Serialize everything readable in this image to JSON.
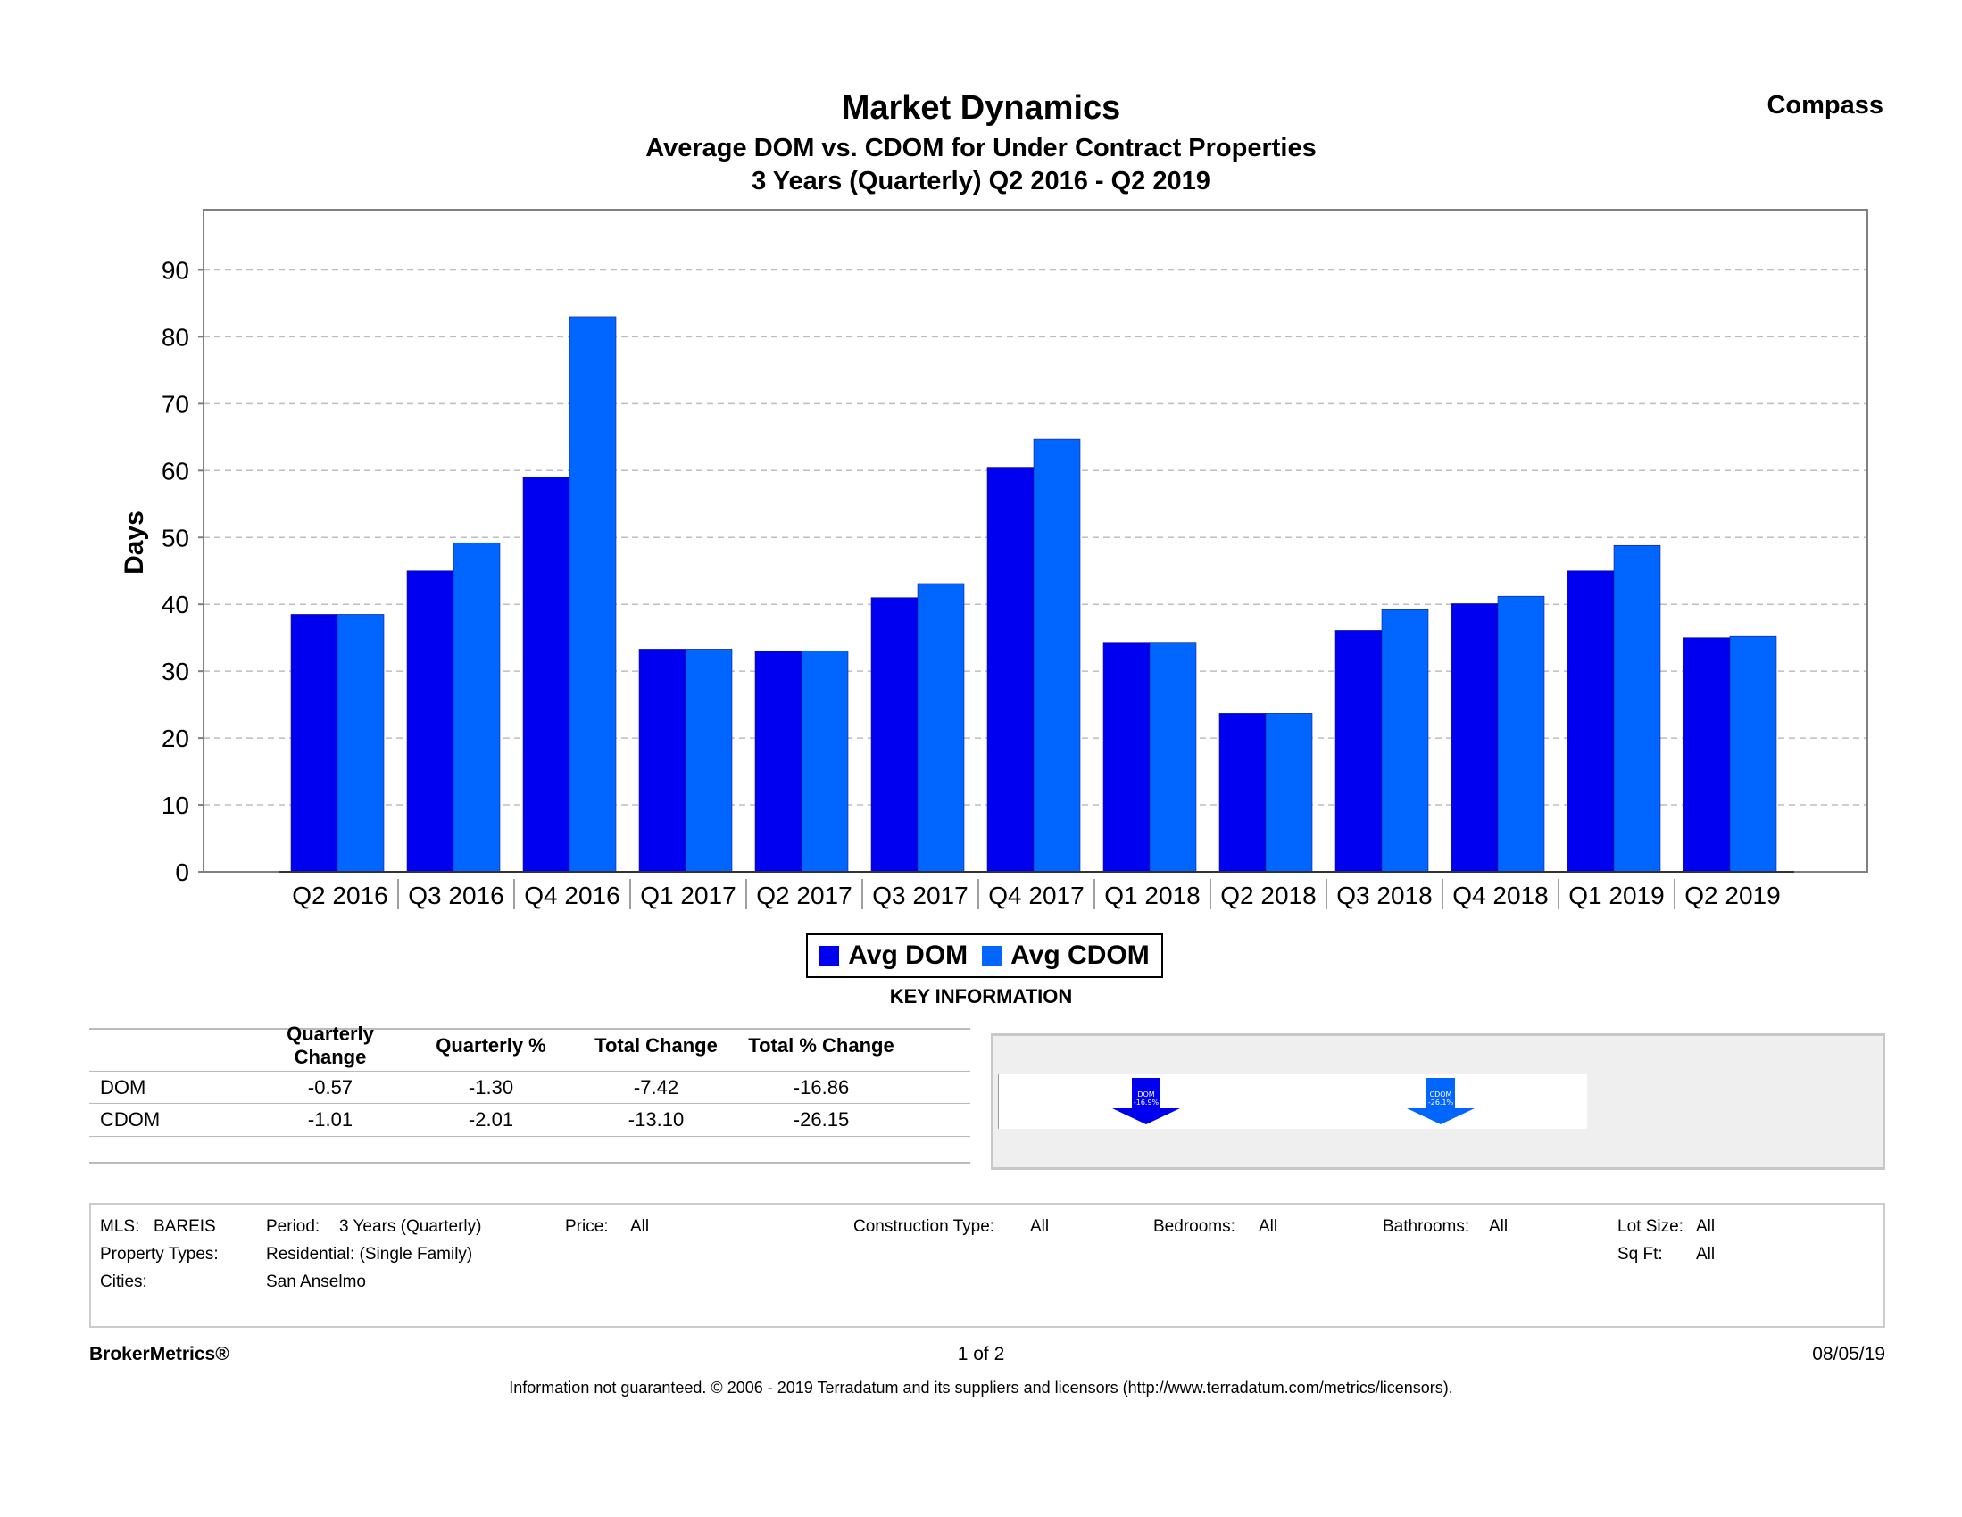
{
  "header": {
    "title": "Market Dynamics",
    "subtitle": "Average DOM vs. CDOM for Under Contract Properties",
    "period": "3 Years (Quarterly) Q2 2016 - Q2 2019",
    "brand": "Compass"
  },
  "colors": {
    "dom": "#0000f0",
    "cdom": "#0066ff",
    "grid": "#bdbdbd",
    "axis": "#808080"
  },
  "chart_data": {
    "type": "bar",
    "title": "Average DOM vs. CDOM for Under Contract Properties",
    "xlabel": "",
    "ylabel": "Days",
    "ylim": [
      0,
      99
    ],
    "yticks": [
      0,
      10,
      20,
      30,
      40,
      50,
      60,
      70,
      80,
      90
    ],
    "grid": true,
    "legend_position": "bottom-center",
    "categories": [
      "Q2 2016",
      "Q3 2016",
      "Q4 2016",
      "Q1 2017",
      "Q2 2017",
      "Q3 2017",
      "Q4 2017",
      "Q1 2018",
      "Q2 2018",
      "Q3 2018",
      "Q4 2018",
      "Q1 2019",
      "Q2 2019"
    ],
    "series": [
      {
        "name": "Avg DOM",
        "values": [
          38.5,
          45,
          59,
          33.3,
          33,
          41,
          60.5,
          34.2,
          23.7,
          36.1,
          40.1,
          45,
          35
        ]
      },
      {
        "name": "Avg CDOM",
        "values": [
          38.5,
          49.2,
          83,
          33.3,
          33,
          43.1,
          64.7,
          34.2,
          23.7,
          39.2,
          41.2,
          48.8,
          35.2
        ]
      }
    ]
  },
  "legend": {
    "dom": "Avg DOM",
    "cdom": "Avg CDOM"
  },
  "key_info": {
    "title": "KEY INFORMATION",
    "headers": [
      "Quarterly Change",
      "Quarterly %",
      "Total Change",
      "Total % Change"
    ],
    "rows": [
      {
        "label": "DOM",
        "q_change": "-0.57",
        "q_pct": "-1.30",
        "t_change": "-7.42",
        "t_pct": "-16.86"
      },
      {
        "label": "CDOM",
        "q_change": "-1.01",
        "q_pct": "-2.01",
        "t_change": "-13.10",
        "t_pct": "-26.15"
      }
    ],
    "arrows": [
      {
        "label": "DOM",
        "value": "-16.9%"
      },
      {
        "label": "CDOM",
        "value": "-26.1%"
      }
    ]
  },
  "filters": {
    "mls_label": "MLS:",
    "mls_value": "BAREIS",
    "period_label": "Period:",
    "period_value": "3 Years (Quarterly)",
    "price_label": "Price:",
    "price_value": "All",
    "construction_label": "Construction Type:",
    "construction_value": "All",
    "bedrooms_label": "Bedrooms:",
    "bedrooms_value": "All",
    "bathrooms_label": "Bathrooms:",
    "bathrooms_value": "All",
    "lotsize_label": "Lot Size:",
    "lotsize_value": "All",
    "proptypes_label": "Property Types:",
    "proptypes_value": "Residential: (Single Family)",
    "sqft_label": "Sq Ft:",
    "sqft_value": "All",
    "cities_label": "Cities:",
    "cities_value": "San Anselmo"
  },
  "footer": {
    "brand": "BrokerMetrics®",
    "page": "1 of 2",
    "date": "08/05/19",
    "disclaimer": "Information not guaranteed.  © 2006 - 2019 Terradatum and its suppliers and licensors (http://www.terradatum.com/metrics/licensors)."
  }
}
